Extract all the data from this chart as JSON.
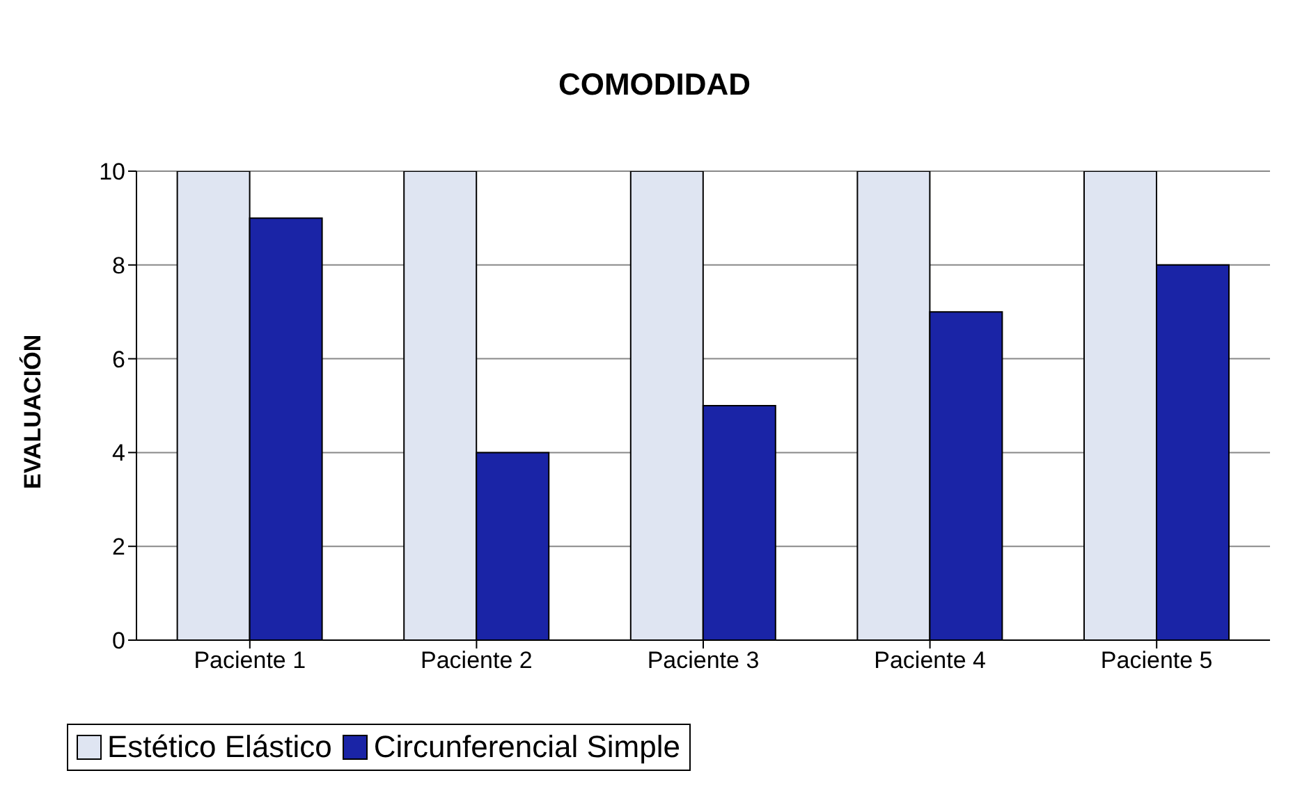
{
  "chart_data": {
    "type": "bar",
    "title": "COMODIDAD",
    "ylabel": "EVALUACIÓN",
    "categories": [
      "Paciente 1",
      "Paciente 2",
      "Paciente 3",
      "Paciente 4",
      "Paciente 5"
    ],
    "series": [
      {
        "name": "Estético Elástico",
        "color": "#dfe5f2",
        "values": [
          10,
          10,
          10,
          10,
          10
        ]
      },
      {
        "name": "Circunferencial Simple",
        "color": "#1a24a6",
        "values": [
          9,
          4,
          5,
          7,
          8
        ]
      }
    ],
    "ylim": [
      0,
      10
    ],
    "yticks": [
      0,
      2,
      4,
      6,
      8,
      10
    ],
    "grid": "y",
    "legend": "bottom"
  }
}
